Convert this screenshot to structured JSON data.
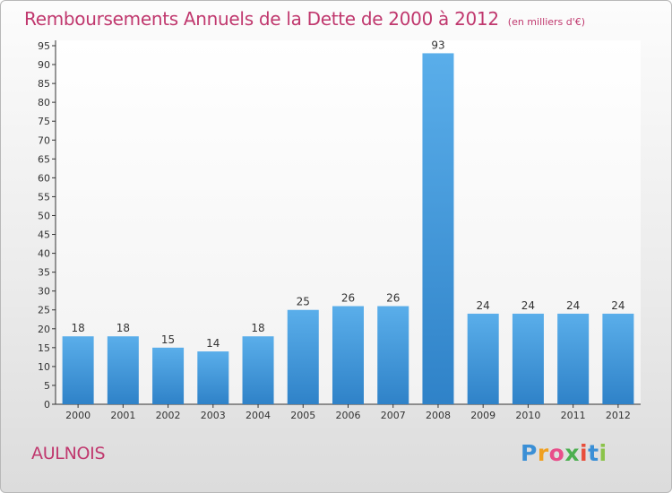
{
  "header": {
    "title": "Remboursements Annuels de la Dette de 2000 à 2012",
    "unit": "(en milliers d'€)"
  },
  "location": "AULNOIS",
  "logo": {
    "letters": [
      "P",
      "r",
      "o",
      "x",
      "i",
      "t",
      "i"
    ],
    "colors": [
      "#3a8fd6",
      "#f0a020",
      "#e84e8a",
      "#4caf50",
      "#e84e3a",
      "#3a8fd6",
      "#8bc34a"
    ]
  },
  "colors": {
    "bar_light": "#5aaeea",
    "bar_dark": "#2f82c8",
    "title": "#c0386e"
  },
  "chart_data": {
    "type": "bar",
    "title": "Remboursements Annuels de la Dette de 2000 à 2012",
    "xlabel": "",
    "ylabel": "",
    "categories": [
      "2000",
      "2001",
      "2002",
      "2003",
      "2004",
      "2005",
      "2006",
      "2007",
      "2008",
      "2009",
      "2010",
      "2011",
      "2012"
    ],
    "values": [
      18,
      18,
      15,
      14,
      18,
      25,
      26,
      26,
      93,
      24,
      24,
      24,
      24
    ],
    "ylim": [
      0,
      95
    ],
    "yticks": [
      0,
      5,
      10,
      15,
      20,
      25,
      30,
      35,
      40,
      45,
      50,
      55,
      60,
      65,
      70,
      75,
      80,
      85,
      90,
      95
    ],
    "grid": false
  }
}
